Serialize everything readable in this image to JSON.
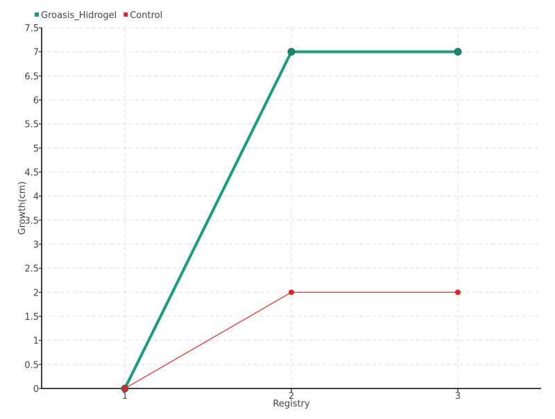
{
  "chart_data": {
    "type": "line",
    "title": "",
    "xlabel": "Registry",
    "ylabel": "Growth(cm)",
    "x": [
      1,
      2,
      3
    ],
    "x_tick_labels": [
      "1",
      "2",
      "3"
    ],
    "xlim": [
      0.5,
      3.5
    ],
    "ylim": [
      0,
      7.5
    ],
    "y_ticks": [
      0,
      0.5,
      1,
      1.5,
      2,
      2.5,
      3,
      3.5,
      4,
      4.5,
      5,
      5.5,
      6,
      6.5,
      7,
      7.5
    ],
    "grid": true,
    "legend_position": "top-left",
    "series": [
      {
        "name": "Groasis_Hidrogel",
        "values": [
          0,
          7,
          7
        ],
        "color": "#1a9c7f",
        "marker_color": "#168a6f"
      },
      {
        "name": "Control",
        "values": [
          0,
          2,
          2
        ],
        "color": "#e8202a",
        "marker_color": "#e8202a"
      }
    ]
  }
}
